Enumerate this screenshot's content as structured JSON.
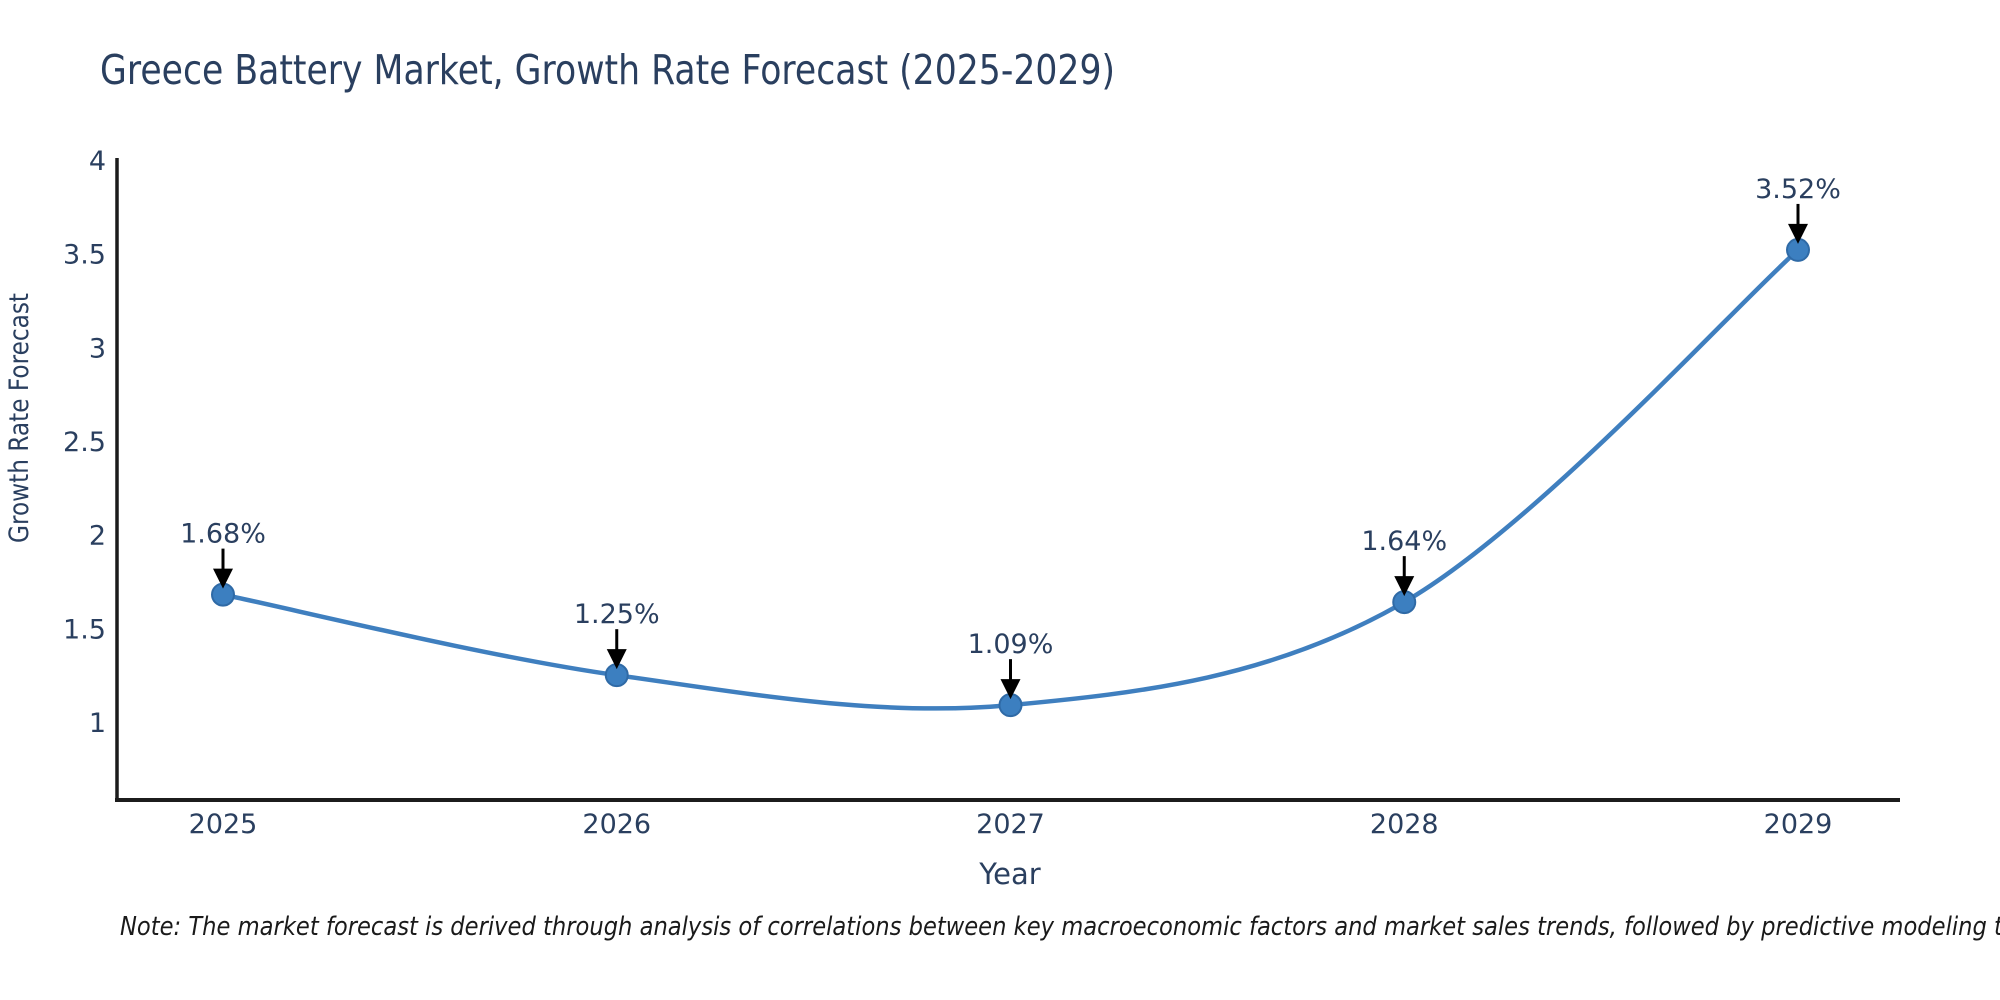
{
  "title": "Greece Battery Market, Growth Rate Forecast (2025-2029)",
  "note": "Note: The market forecast is derived through analysis of correlations between key macroeconomic factors and market sales trends, followed by predictive modeling to project future sales.",
  "chart_data": {
    "type": "line",
    "line_shape": "spline",
    "title": "Greece Battery Market, Growth Rate Forecast (2025-2029)",
    "xlabel": "Year",
    "ylabel": "Growth Rate Forecast",
    "x": [
      2025,
      2026,
      2027,
      2028,
      2029
    ],
    "y": [
      1.68,
      1.25,
      1.09,
      1.64,
      3.52
    ],
    "point_labels": [
      "1.68%",
      "1.25%",
      "1.09%",
      "1.64%",
      "3.52%"
    ],
    "x_tick_labels": [
      "2025",
      "2026",
      "2027",
      "2028",
      "2029"
    ],
    "y_ticks": [
      1,
      1.5,
      2,
      2.5,
      3,
      3.5,
      4
    ],
    "xlim": [
      2024.73,
      2029.26
    ],
    "ylim": [
      0.585,
      4
    ],
    "grid": false,
    "legend": null,
    "annotations_style": "value label with black down arrow above each marker",
    "colors": {
      "line": "#3f7fbf",
      "marker_fill": "#3c7fc0",
      "marker_edge": "#2f6aa6",
      "arrow": "#000000",
      "text": "#2a3f5f",
      "axis_line": "#1c1c1c",
      "note_text": "#1a1a1a",
      "background": "#ffffff"
    }
  }
}
